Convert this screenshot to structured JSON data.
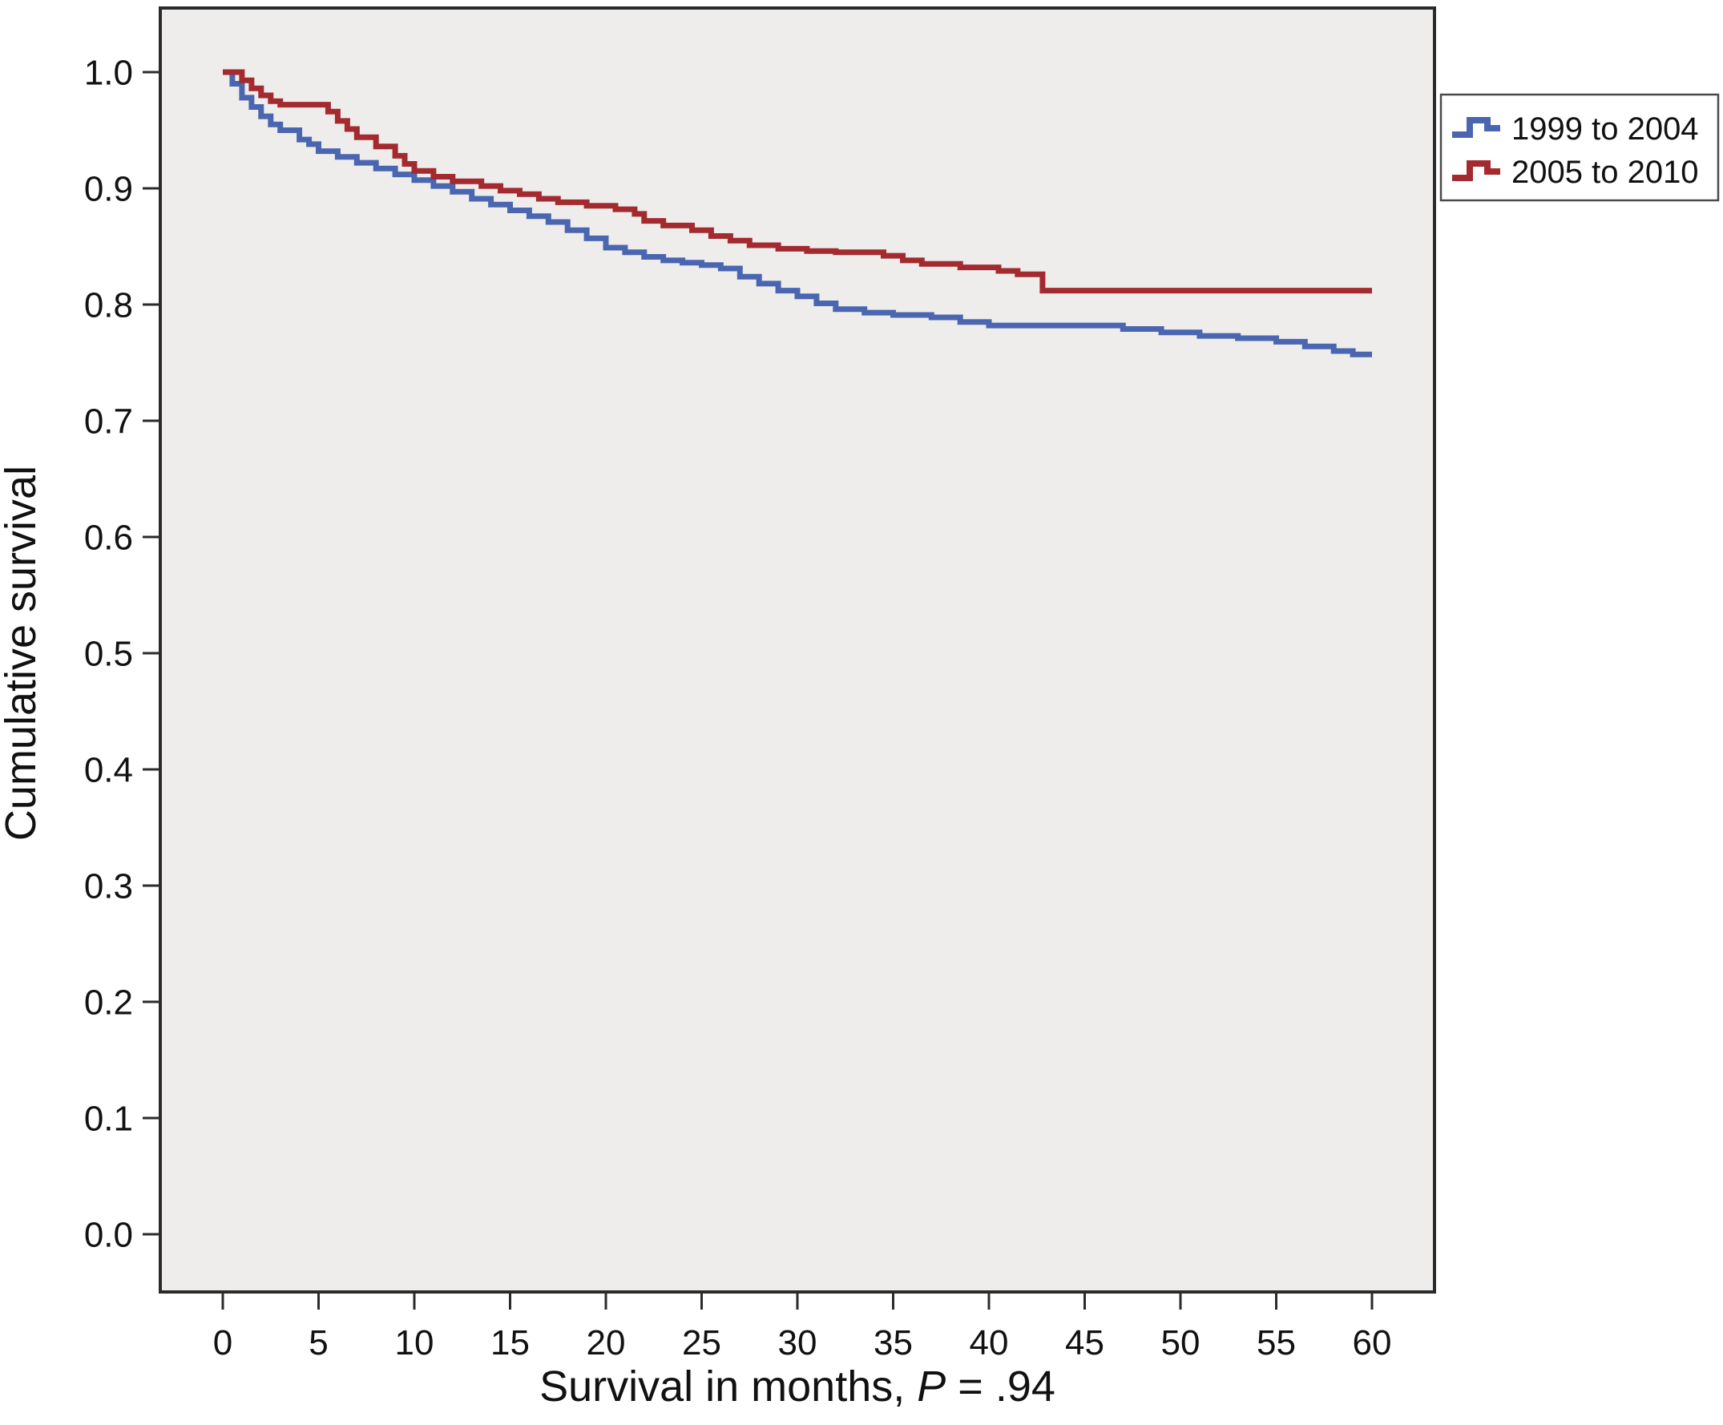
{
  "figure": {
    "background": "#ffffff",
    "plot_background": "#eeedec",
    "border_color": "#2b2b2b"
  },
  "chart_data": {
    "type": "line",
    "subtype": "kaplan-meier-step",
    "title": "",
    "xlabel": "Survival in months, P = .94",
    "xlabel_prefix": "Survival in months, ",
    "xlabel_italic": "P",
    "xlabel_suffix": " = .94",
    "ylabel": "Cumulative survival",
    "xlim": [
      0,
      60
    ],
    "ylim": [
      0.0,
      1.0
    ],
    "x_ticks": [
      0,
      5,
      10,
      15,
      20,
      25,
      30,
      35,
      40,
      45,
      50,
      55,
      60
    ],
    "y_ticks": [
      0.0,
      0.1,
      0.2,
      0.3,
      0.4,
      0.5,
      0.6,
      0.7,
      0.8,
      0.9,
      1.0
    ],
    "grid": false,
    "legend_position": "top-right-outside",
    "p_value": ".94",
    "series": [
      {
        "name": "1999 to 2004",
        "color": "#4a66b0",
        "points": [
          [
            0,
            1.0
          ],
          [
            0.5,
            0.99
          ],
          [
            1,
            0.978
          ],
          [
            1.5,
            0.97
          ],
          [
            2,
            0.962
          ],
          [
            2.5,
            0.955
          ],
          [
            3,
            0.95
          ],
          [
            4,
            0.942
          ],
          [
            4.5,
            0.938
          ],
          [
            5,
            0.932
          ],
          [
            6,
            0.927
          ],
          [
            7,
            0.922
          ],
          [
            8,
            0.917
          ],
          [
            9,
            0.912
          ],
          [
            10,
            0.907
          ],
          [
            11,
            0.902
          ],
          [
            12,
            0.897
          ],
          [
            13,
            0.891
          ],
          [
            14,
            0.886
          ],
          [
            15,
            0.881
          ],
          [
            16,
            0.876
          ],
          [
            17,
            0.871
          ],
          [
            18,
            0.864
          ],
          [
            19,
            0.857
          ],
          [
            20,
            0.849
          ],
          [
            21,
            0.845
          ],
          [
            22,
            0.841
          ],
          [
            23,
            0.838
          ],
          [
            24,
            0.836
          ],
          [
            25,
            0.834
          ],
          [
            26,
            0.831
          ],
          [
            27,
            0.824
          ],
          [
            28,
            0.818
          ],
          [
            29,
            0.812
          ],
          [
            30,
            0.807
          ],
          [
            31,
            0.801
          ],
          [
            32,
            0.796
          ],
          [
            33.5,
            0.793
          ],
          [
            35,
            0.791
          ],
          [
            37,
            0.789
          ],
          [
            38.5,
            0.785
          ],
          [
            40,
            0.782
          ],
          [
            47,
            0.779
          ],
          [
            49,
            0.776
          ],
          [
            51,
            0.773
          ],
          [
            53,
            0.771
          ],
          [
            55,
            0.768
          ],
          [
            56.5,
            0.764
          ],
          [
            58,
            0.76
          ],
          [
            59,
            0.757
          ]
        ]
      },
      {
        "name": "2005 to 2010",
        "color": "#a32a2e",
        "points": [
          [
            0,
            1.0
          ],
          [
            1,
            0.993
          ],
          [
            1.5,
            0.986
          ],
          [
            2,
            0.98
          ],
          [
            2.5,
            0.975
          ],
          [
            3,
            0.972
          ],
          [
            5.5,
            0.966
          ],
          [
            6,
            0.958
          ],
          [
            6.5,
            0.951
          ],
          [
            7,
            0.944
          ],
          [
            8,
            0.936
          ],
          [
            9,
            0.928
          ],
          [
            9.5,
            0.921
          ],
          [
            10,
            0.915
          ],
          [
            11,
            0.91
          ],
          [
            12,
            0.906
          ],
          [
            13.5,
            0.902
          ],
          [
            14.5,
            0.898
          ],
          [
            15.5,
            0.895
          ],
          [
            16.5,
            0.891
          ],
          [
            17.5,
            0.888
          ],
          [
            19,
            0.885
          ],
          [
            20.5,
            0.882
          ],
          [
            21.5,
            0.878
          ],
          [
            22,
            0.872
          ],
          [
            23,
            0.868
          ],
          [
            24.5,
            0.864
          ],
          [
            25.5,
            0.859
          ],
          [
            26.5,
            0.855
          ],
          [
            27.5,
            0.851
          ],
          [
            29,
            0.848
          ],
          [
            30.5,
            0.846
          ],
          [
            32,
            0.845
          ],
          [
            34.5,
            0.842
          ],
          [
            35.5,
            0.838
          ],
          [
            36.5,
            0.835
          ],
          [
            38.5,
            0.832
          ],
          [
            40.5,
            0.829
          ],
          [
            41.5,
            0.826
          ],
          [
            42.8,
            0.812
          ]
        ]
      }
    ]
  }
}
